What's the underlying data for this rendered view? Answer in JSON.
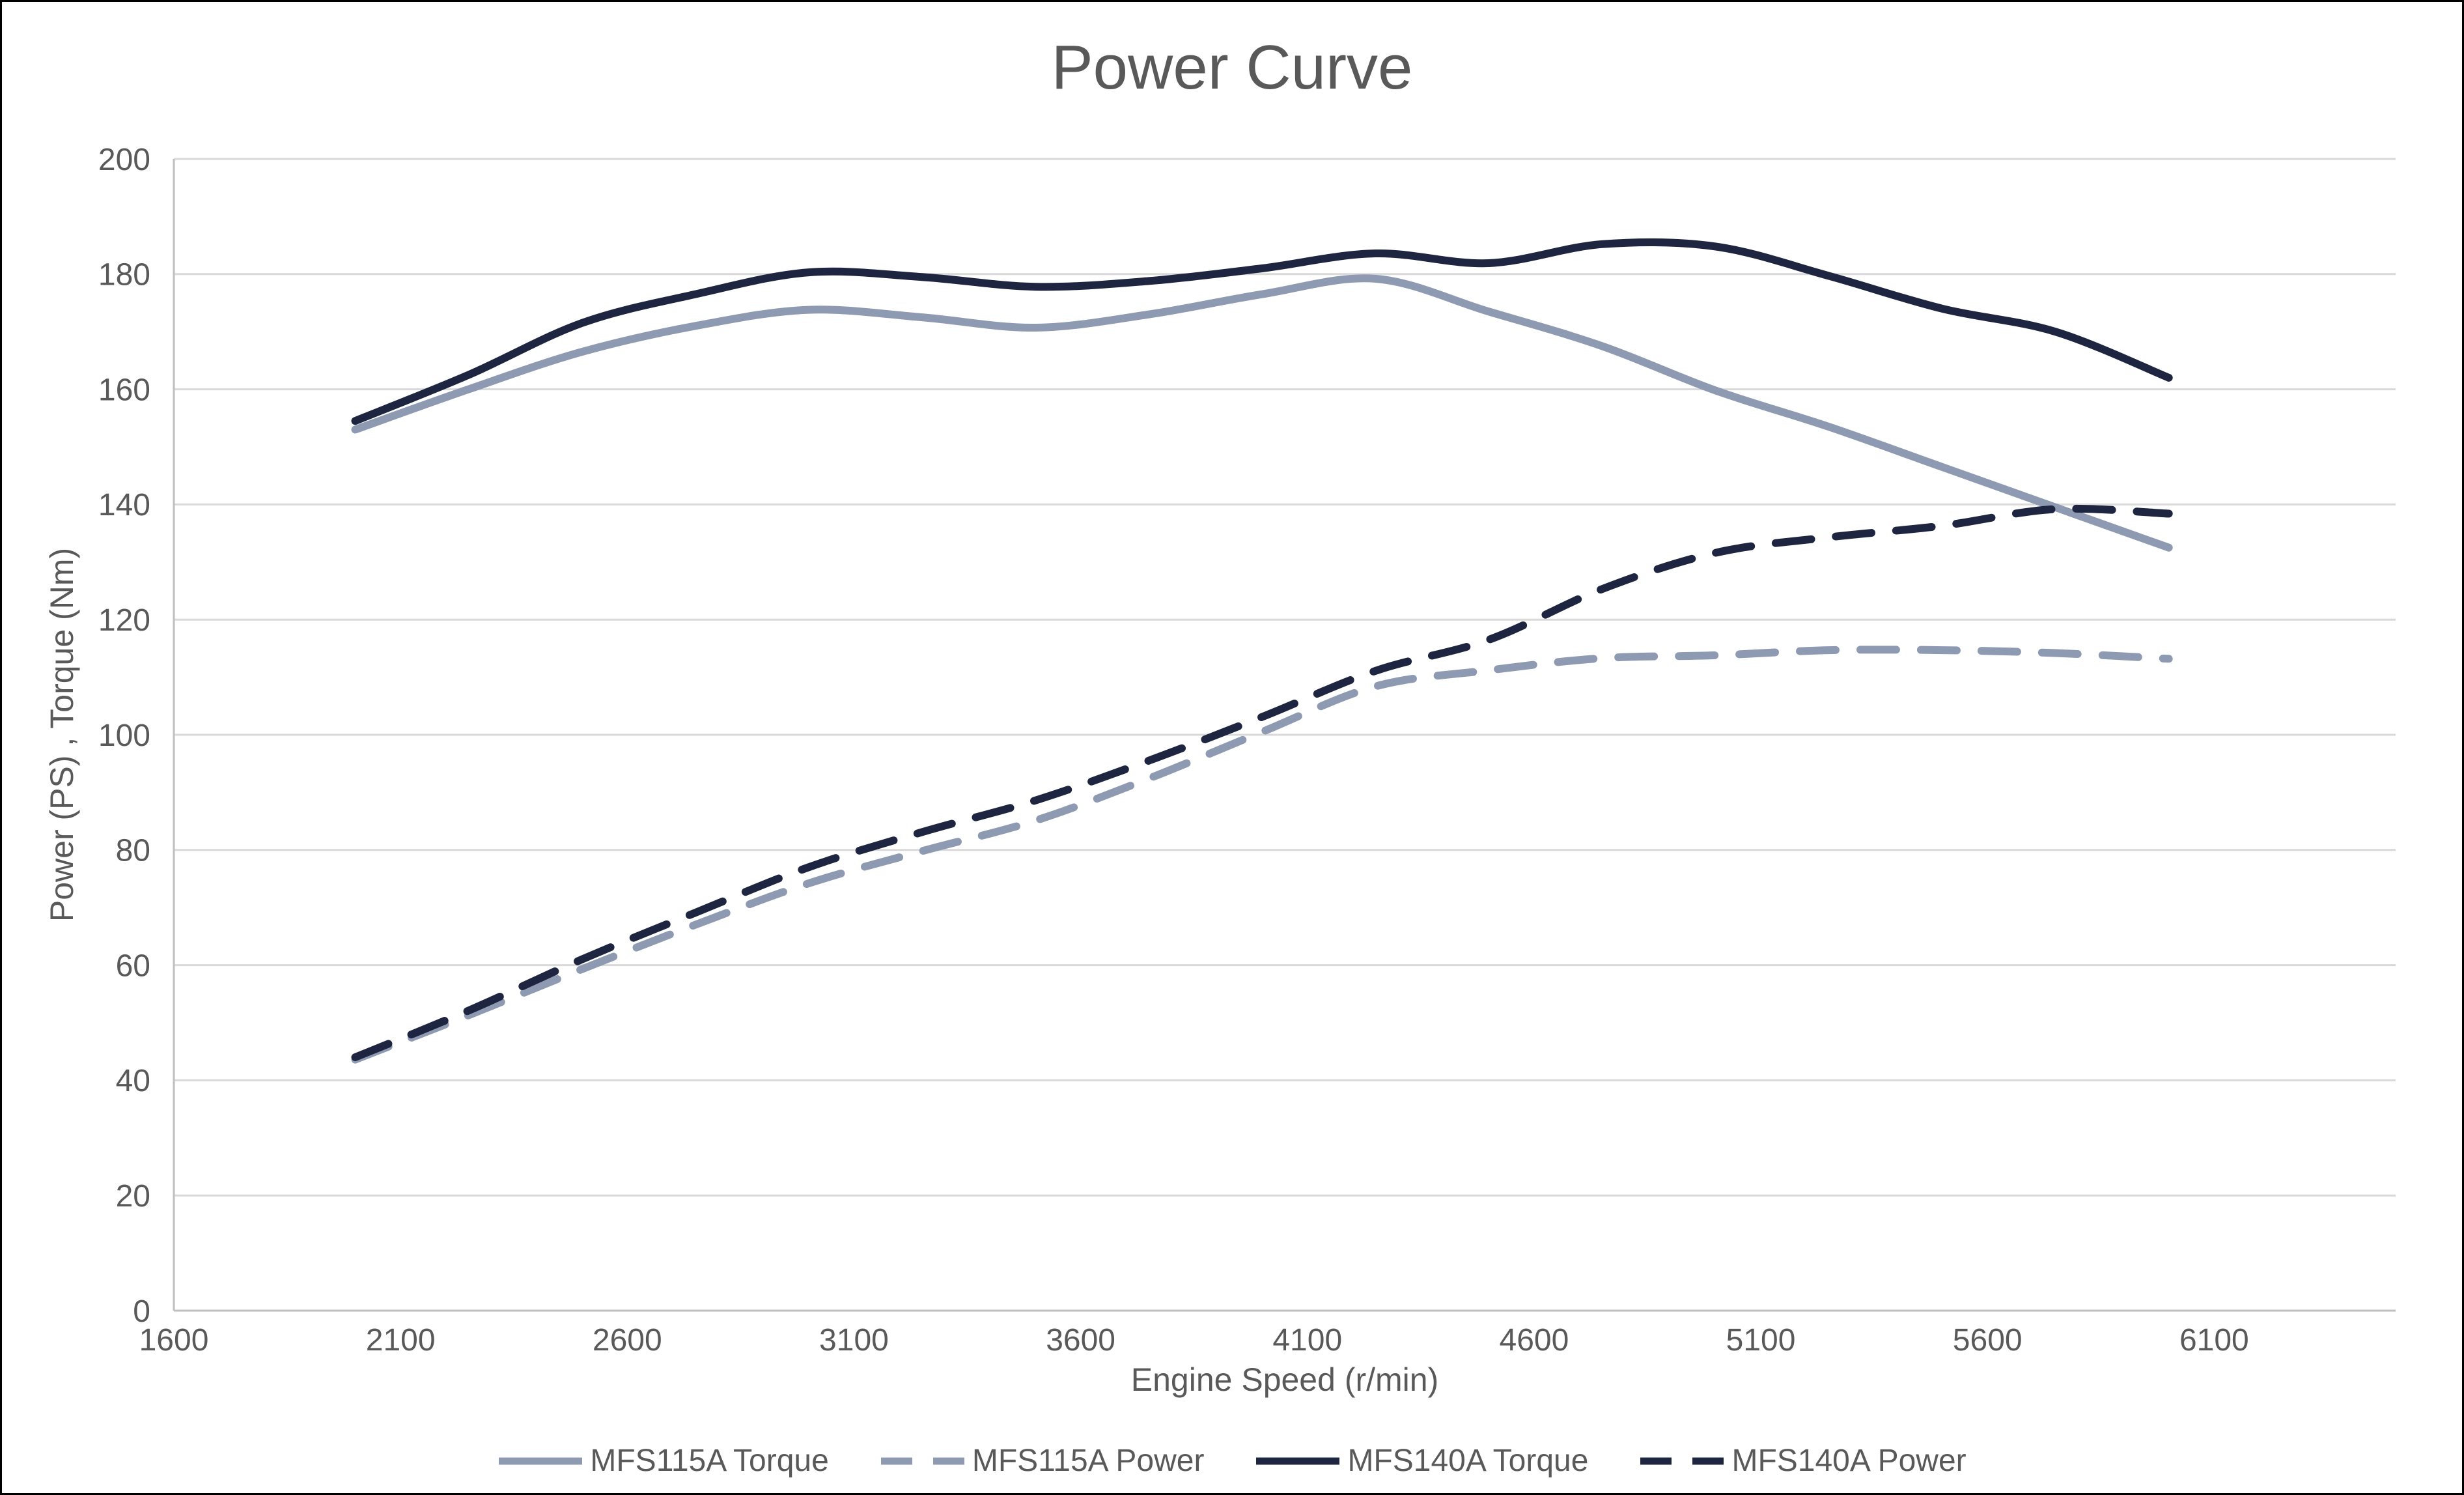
{
  "chart_data": {
    "type": "line",
    "title": "Power Curve",
    "xlabel": "Engine Speed (r/min)",
    "ylabel": "Power (PS) , Torque (Nm)",
    "xlim": [
      1600,
      6500
    ],
    "ylim": [
      0,
      200
    ],
    "x_ticks": [
      1600,
      2100,
      2600,
      3100,
      3600,
      4100,
      4600,
      5100,
      5600,
      6100
    ],
    "y_ticks": [
      0,
      20,
      40,
      60,
      80,
      100,
      120,
      140,
      160,
      180,
      200
    ],
    "grid": "horizontal-only",
    "legend_position": "bottom",
    "smooth_lines": true,
    "x": [
      2000,
      2250,
      2500,
      2750,
      3000,
      3250,
      3500,
      3750,
      4000,
      4250,
      4500,
      4750,
      5000,
      5250,
      5500,
      5750,
      6000
    ],
    "series": [
      {
        "name": "MFS115A Torque",
        "color": "#8d9ab2",
        "style": "solid",
        "values": [
          153.0,
          160.0,
          166.5,
          171.0,
          173.8,
          172.5,
          170.7,
          173.0,
          176.5,
          179.2,
          173.5,
          167.5,
          159.8,
          153.5,
          146.5,
          139.5,
          132.5
        ]
      },
      {
        "name": "MFS115A Power",
        "color": "#8d9ab2",
        "style": "dashed",
        "values": [
          43.6,
          51.3,
          59.3,
          67.0,
          74.2,
          79.8,
          85.1,
          92.4,
          100.5,
          108.4,
          111.2,
          113.3,
          113.8,
          114.7,
          114.7,
          114.2,
          113.2
        ]
      },
      {
        "name": "MFS140A Torque",
        "color": "#1e2540",
        "style": "solid",
        "values": [
          154.5,
          162.5,
          171.5,
          176.5,
          180.3,
          179.5,
          177.8,
          178.8,
          181.0,
          183.6,
          181.9,
          185.2,
          184.8,
          179.7,
          174.0,
          170.0,
          162.0
        ]
      },
      {
        "name": "MFS140A Power",
        "color": "#1e2540",
        "style": "dashed",
        "values": [
          44.0,
          52.1,
          61.0,
          69.1,
          77.0,
          83.1,
          88.6,
          95.5,
          103.1,
          111.1,
          116.5,
          125.3,
          131.6,
          134.3,
          136.3,
          139.2,
          138.4
        ]
      }
    ],
    "colors": {
      "text": "#595959",
      "gridline": "#d9d9d9",
      "axis_line": "#bfbfbf",
      "background": "#ffffff",
      "border": "#000000"
    }
  }
}
